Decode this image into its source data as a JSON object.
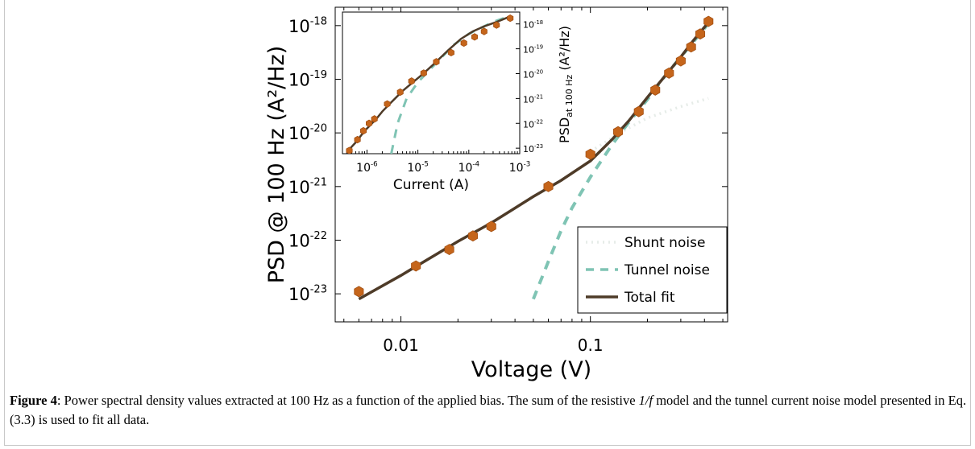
{
  "chart_data": [
    {
      "type": "line",
      "xscale": "log",
      "yscale": "log",
      "xlim": [
        0.0045,
        0.53
      ],
      "ylim": [
        3e-24,
        2.2e-18
      ],
      "xlabel": "Voltage (V)",
      "ylabel": "PSD @ 100 Hz (A²/Hz)",
      "xticks": [
        {
          "value": 0.01,
          "label": "0.01"
        },
        {
          "value": 0.1,
          "label": "0.1"
        }
      ],
      "yticks": [
        {
          "value": 1e-23,
          "base": "10",
          "exp": "-23"
        },
        {
          "value": 1e-22,
          "base": "10",
          "exp": "-22"
        },
        {
          "value": 1e-21,
          "base": "10",
          "exp": "-21"
        },
        {
          "value": 1e-20,
          "base": "10",
          "exp": "-20"
        },
        {
          "value": 1e-19,
          "base": "10",
          "exp": "-19"
        },
        {
          "value": 1e-18,
          "base": "10",
          "exp": "-18"
        }
      ],
      "legend_position": "bottom-right",
      "series": [
        {
          "name": "Shunt noise",
          "kind": "line",
          "style": "dotted",
          "color": "#e6ece8",
          "points": [
            [
              0.1,
              4.5e-21
            ],
            [
              0.15,
              1.1e-20
            ],
            [
              0.2,
              1.9e-20
            ],
            [
              0.3,
              3.1e-20
            ],
            [
              0.42,
              4.4e-20
            ]
          ]
        },
        {
          "name": "Tunnel noise",
          "kind": "line",
          "style": "dashed",
          "color": "#7fc4b4",
          "points": [
            [
              0.05,
              8e-24
            ],
            [
              0.06,
              4e-23
            ],
            [
              0.07,
              1.5e-22
            ],
            [
              0.08,
              4e-22
            ],
            [
              0.1,
              1.5e-21
            ],
            [
              0.13,
              6e-21
            ],
            [
              0.16,
              1.6e-20
            ],
            [
              0.2,
              4.2e-20
            ],
            [
              0.25,
              1.2e-19
            ],
            [
              0.3,
              2.6e-19
            ],
            [
              0.35,
              5e-19
            ],
            [
              0.42,
              1.1e-18
            ]
          ]
        },
        {
          "name": "Total fit",
          "kind": "line",
          "style": "solid",
          "color": "#4e3b28",
          "points": [
            [
              0.006,
              8e-24
            ],
            [
              0.01,
              2.2e-23
            ],
            [
              0.02,
              9.5e-23
            ],
            [
              0.03,
              2.1e-22
            ],
            [
              0.05,
              6.5e-22
            ],
            [
              0.07,
              1.3e-21
            ],
            [
              0.1,
              3e-21
            ],
            [
              0.13,
              7.5e-21
            ],
            [
              0.16,
              1.7e-20
            ],
            [
              0.2,
              4.6e-20
            ],
            [
              0.25,
              1.2e-19
            ],
            [
              0.3,
              2.6e-19
            ],
            [
              0.35,
              5.3e-19
            ],
            [
              0.42,
              1.15e-18
            ]
          ]
        },
        {
          "name": "",
          "kind": "marker",
          "marker": "hexagon",
          "color": "#c5651b",
          "points": [
            [
              0.006,
              1.1e-23
            ],
            [
              0.012,
              3.3e-23
            ],
            [
              0.018,
              6.7e-23
            ],
            [
              0.024,
              1.2e-22
            ],
            [
              0.03,
              1.8e-22
            ],
            [
              0.06,
              1e-21
            ],
            [
              0.1,
              4e-21
            ],
            [
              0.14,
              1.05e-20
            ],
            [
              0.18,
              2.5e-20
            ],
            [
              0.22,
              6.3e-20
            ],
            [
              0.26,
              1.3e-19
            ],
            [
              0.3,
              2.2e-19
            ],
            [
              0.34,
              4e-19
            ],
            [
              0.38,
              7e-19
            ],
            [
              0.42,
              1.2e-18
            ]
          ]
        }
      ]
    },
    {
      "type": "line",
      "xscale": "log",
      "yscale": "log",
      "xlim": [
        3.3e-07,
        0.001
      ],
      "ylim": [
        6e-24,
        3e-18
      ],
      "xlabel": "Current (A)",
      "ylabel_main": "PSD",
      "ylabel_sub": "at 100 Hz",
      "ylabel_units": "(A²/Hz)",
      "xticks": [
        {
          "value": 1e-06,
          "base": "10",
          "exp": "-6"
        },
        {
          "value": 1e-05,
          "base": "10",
          "exp": "-5"
        },
        {
          "value": 0.0001,
          "base": "10",
          "exp": "-4"
        },
        {
          "value": 0.001,
          "base": "10",
          "exp": "-3"
        }
      ],
      "yticks": [
        {
          "value": 1e-23,
          "base": "10",
          "exp": "-23"
        },
        {
          "value": 1e-22,
          "base": "10",
          "exp": "-22"
        },
        {
          "value": 1e-21,
          "base": "10",
          "exp": "-21"
        },
        {
          "value": 1e-20,
          "base": "10",
          "exp": "-20"
        },
        {
          "value": 1e-19,
          "base": "10",
          "exp": "-19"
        },
        {
          "value": 1e-18,
          "base": "10",
          "exp": "-18"
        }
      ],
      "series": [
        {
          "name": "",
          "kind": "line",
          "style": "dashed",
          "color": "#7fc4b4",
          "points": [
            [
              3e-06,
              6e-24
            ],
            [
              4e-06,
              1e-22
            ],
            [
              6e-06,
              1e-21
            ],
            [
              1e-05,
              4.5e-21
            ],
            [
              2e-05,
              2e-20
            ],
            [
              5e-05,
              1.4e-19
            ],
            [
              0.0001,
              4e-19
            ],
            [
              0.0003,
              1.2e-18
            ],
            [
              0.0006,
              2e-18
            ]
          ]
        },
        {
          "name": "",
          "kind": "line",
          "style": "solid",
          "color": "#4e3b28",
          "points": [
            [
              4.5e-07,
              9e-24
            ],
            [
              6e-07,
              1.7e-23
            ],
            [
              9e-07,
              5e-23
            ],
            [
              1.2e-06,
              9e-23
            ],
            [
              1.6e-06,
              1.7e-22
            ],
            [
              2e-06,
              3e-22
            ],
            [
              3e-06,
              7e-22
            ],
            [
              5e-06,
              2e-21
            ],
            [
              8e-06,
              4.5e-21
            ],
            [
              1.2e-05,
              9e-21
            ],
            [
              2e-05,
              2.3e-20
            ],
            [
              4e-05,
              9e-20
            ],
            [
              7e-05,
              2.5e-19
            ],
            [
              0.00012,
              5e-19
            ],
            [
              0.0002,
              8e-19
            ],
            [
              0.00035,
              1.2e-18
            ],
            [
              0.00065,
              2e-18
            ]
          ]
        },
        {
          "name": "",
          "kind": "marker",
          "marker": "hexagon",
          "color": "#c5651b",
          "points": [
            [
              4.5e-07,
              8e-24
            ],
            [
              6.5e-07,
              2.2e-23
            ],
            [
              8.5e-07,
              5e-23
            ],
            [
              1.1e-06,
              1e-22
            ],
            [
              1.4e-06,
              1.5e-22
            ],
            [
              2.5e-06,
              6e-22
            ],
            [
              4.5e-06,
              1.8e-21
            ],
            [
              7.5e-06,
              5e-21
            ],
            [
              1.3e-05,
              1.05e-20
            ],
            [
              2.3e-05,
              3e-20
            ],
            [
              4.5e-05,
              7e-20
            ],
            [
              8e-05,
              1.7e-19
            ],
            [
              0.00013,
              3e-19
            ],
            [
              0.0002,
              5e-19
            ],
            [
              0.00035,
              9e-19
            ],
            [
              0.00065,
              1.7e-18
            ]
          ]
        }
      ]
    }
  ],
  "caption": {
    "label": "Figure 4",
    "text_1": ": Power spectral density values extracted at 100 Hz as a function of the applied bias. The  sum of the resistive ",
    "italic": "1/f",
    "text_2": " model and the tunnel current noise model presented in Eq. (3.3) is used to fit all data."
  }
}
